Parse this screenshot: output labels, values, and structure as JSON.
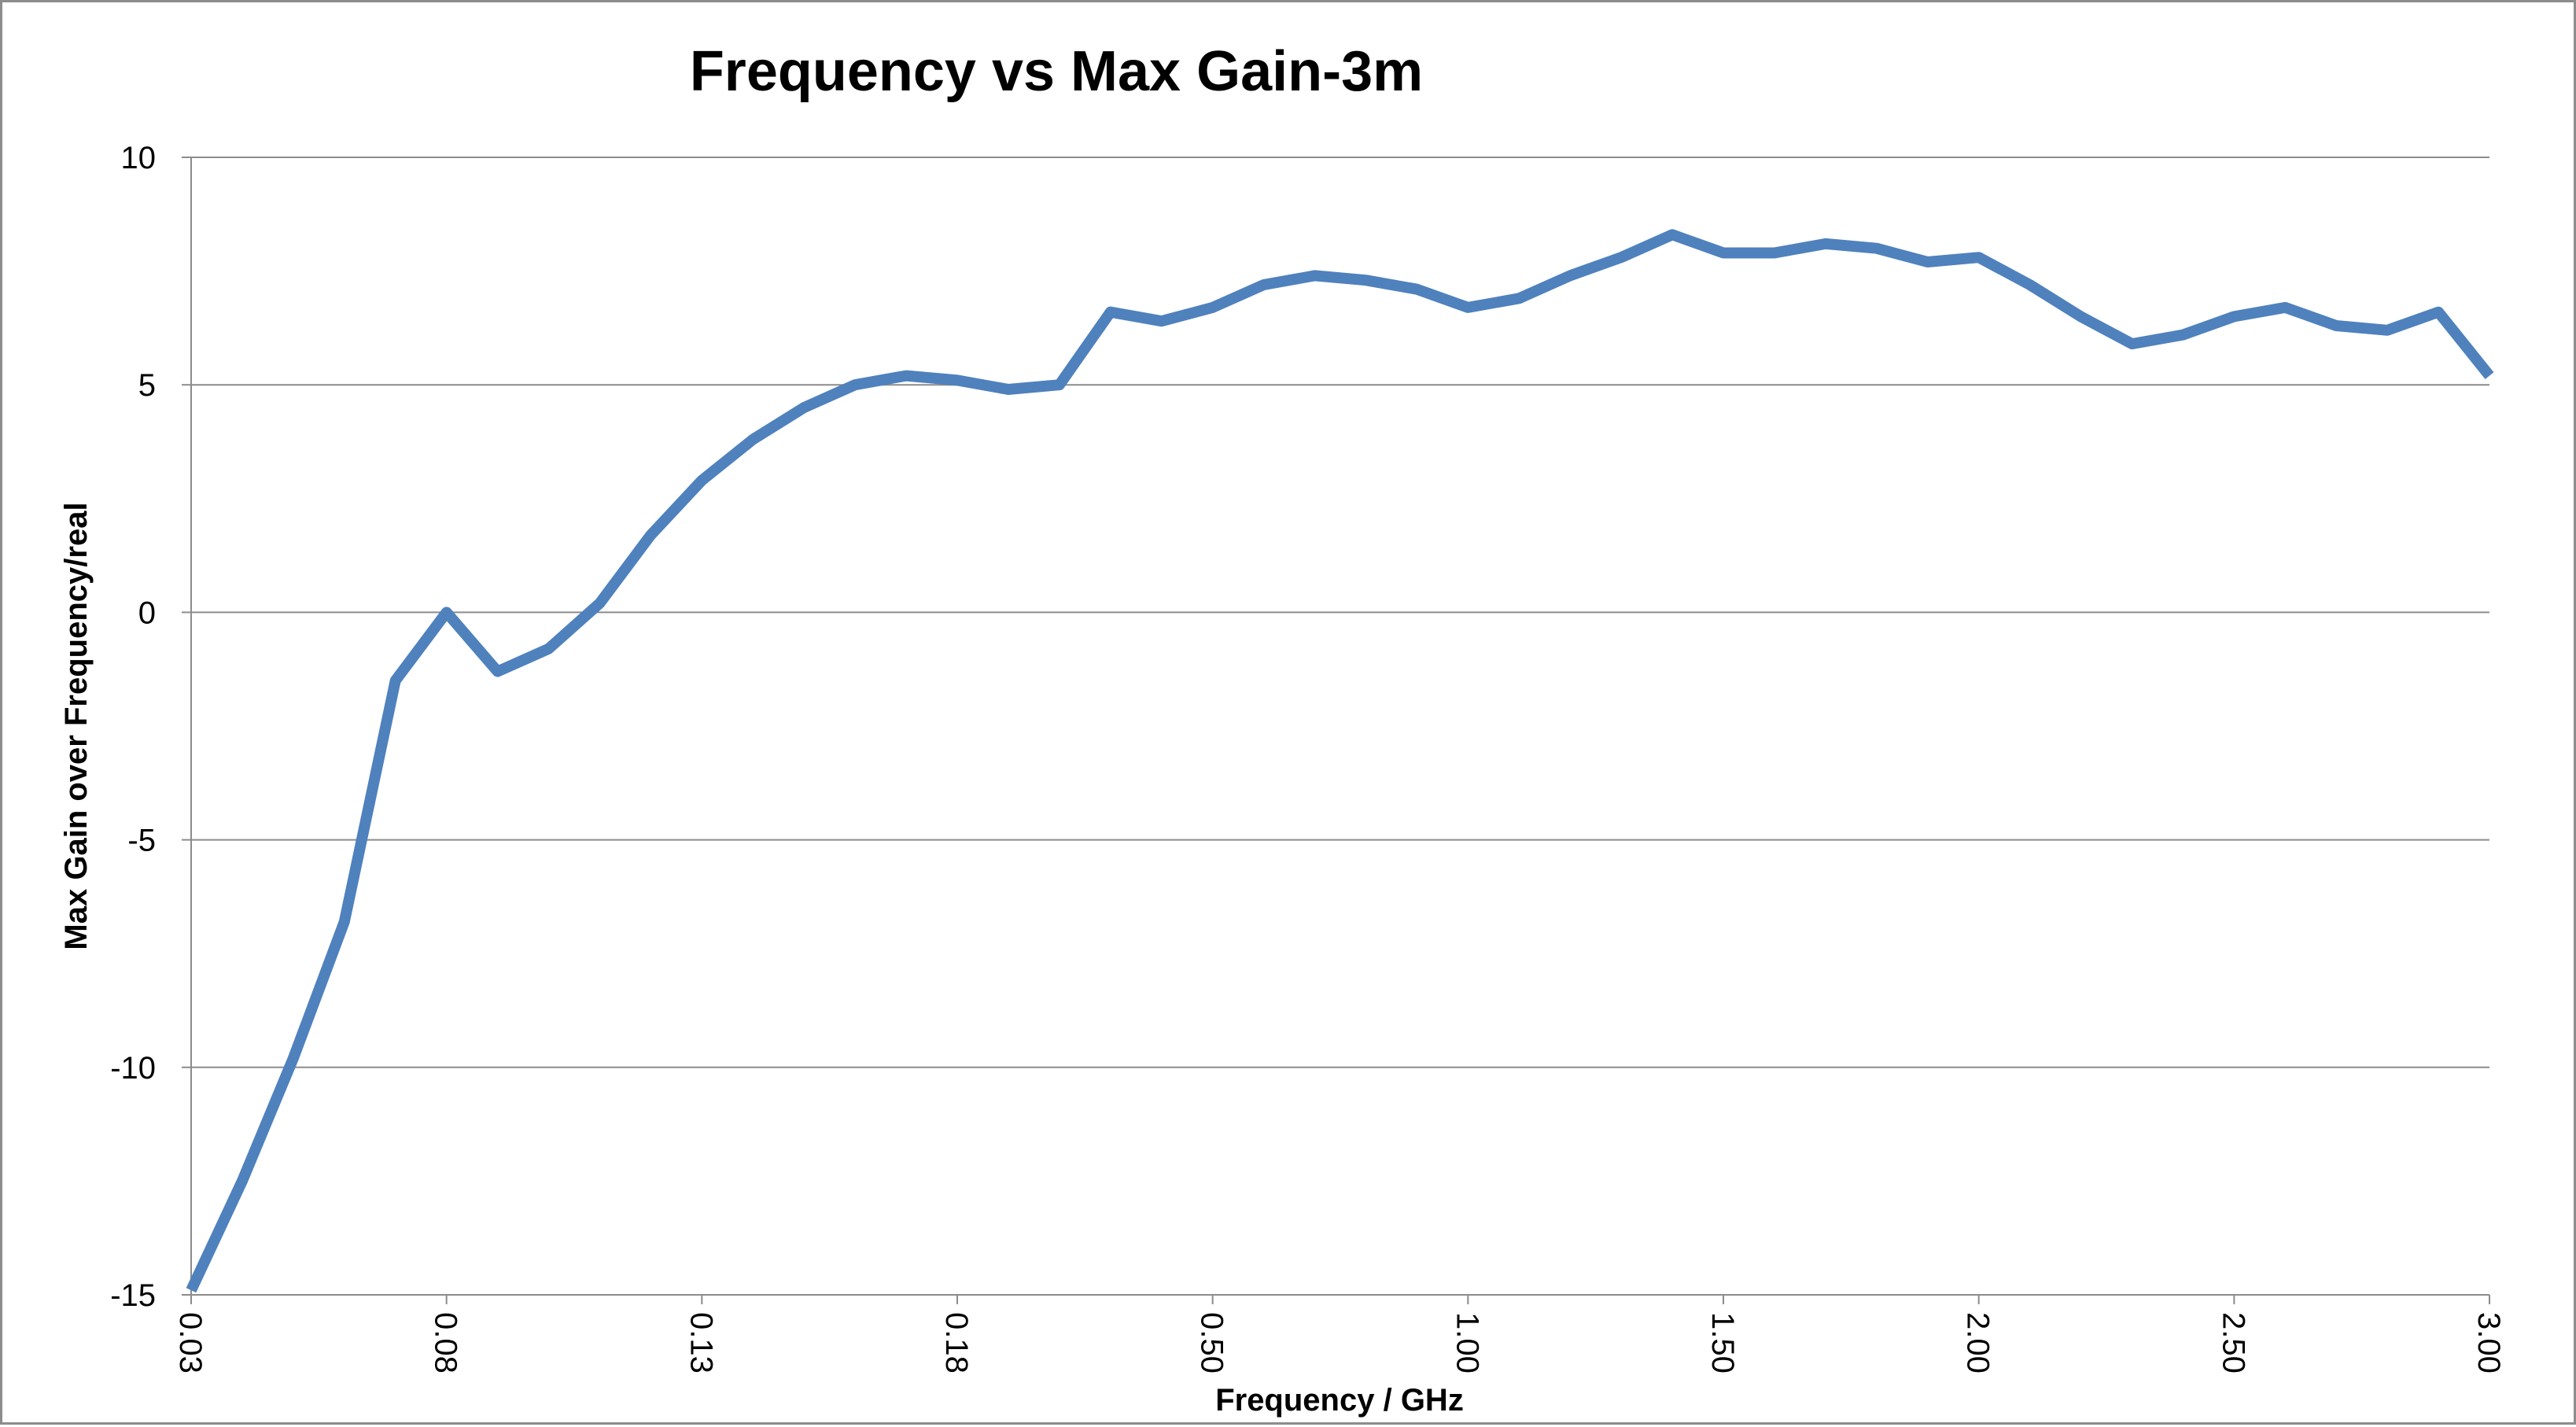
{
  "chart_data": {
    "type": "line",
    "title": "Frequency vs Max Gain-3m",
    "xlabel": "Frequency / GHz",
    "ylabel": "Max Gain over Frequency/real",
    "ylim": [
      -15,
      10
    ],
    "yticks": [
      "10",
      "5",
      "0",
      "-5",
      "-10",
      "-15"
    ],
    "ytick_values": [
      10,
      5,
      0,
      -5,
      -10,
      -15
    ],
    "x_tick_labels": [
      "0.03",
      "0.08",
      "0.13",
      "0.18",
      "0.50",
      "1.00",
      "1.50",
      "2.00",
      "2.50",
      "3.00"
    ],
    "x_tick_index": [
      0,
      5,
      10,
      15,
      20,
      25,
      30,
      35,
      40,
      45
    ],
    "grid": true,
    "legend": "none",
    "series": [
      {
        "color": "#4f81bd",
        "values": [
          -14.9,
          -12.5,
          -9.8,
          -6.8,
          -1.5,
          0.0,
          -1.3,
          -0.8,
          0.2,
          1.7,
          2.9,
          3.8,
          4.5,
          5.0,
          5.2,
          5.1,
          4.9,
          5.0,
          6.6,
          6.4,
          6.7,
          7.2,
          7.4,
          7.3,
          7.1,
          6.7,
          6.9,
          7.4,
          7.8,
          8.3,
          7.9,
          7.9,
          8.1,
          8.0,
          7.7,
          7.8,
          7.2,
          6.5,
          5.9,
          6.1,
          6.5,
          6.7,
          6.3,
          6.2,
          6.6,
          5.2
        ]
      }
    ]
  }
}
